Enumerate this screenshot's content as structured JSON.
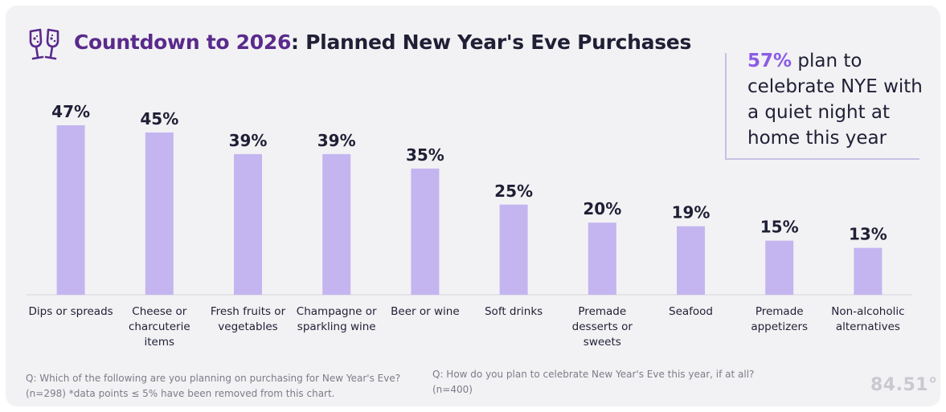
{
  "header": {
    "title_prefix": "Countdown to 2026",
    "title_suffix": ": Planned New Year's Eve Purchases",
    "icon": "champagne-glasses-icon"
  },
  "callout": {
    "percent": "57%",
    "text": "plan to celebrate NYE with a quiet night at home this year"
  },
  "footnotes": {
    "left": "Q: Which of the following are you planning on purchasing for New Year's Eve? (n=298) *data points ≤ 5% have been removed from this chart.",
    "right": "Q: How do you plan to celebrate New Year's Eve this year, if at all? (n=400)"
  },
  "logo": "84.51°",
  "colors": {
    "bar": "#c4b5f0",
    "title_accent": "#5a2a8c",
    "callout_accent": "#8a5ce6",
    "text": "#1f1f36",
    "background": "#f2f2f4"
  },
  "chart_data": {
    "type": "bar",
    "categories": [
      [
        "Dips or spreads"
      ],
      [
        "Cheese or",
        "charcuterie",
        "items"
      ],
      [
        "Fresh fruits or",
        "vegetables"
      ],
      [
        "Champagne or",
        "sparkling wine"
      ],
      [
        "Beer or wine"
      ],
      [
        "Soft drinks"
      ],
      [
        "Premade",
        "desserts or",
        "sweets"
      ],
      [
        "Seafood"
      ],
      [
        "Premade",
        "appetizers"
      ],
      [
        "Non-alcoholic",
        "alternatives"
      ]
    ],
    "values": [
      47,
      45,
      39,
      39,
      35,
      25,
      20,
      19,
      15,
      13
    ],
    "value_labels": [
      "47%",
      "45%",
      "39%",
      "39%",
      "35%",
      "25%",
      "20%",
      "19%",
      "15%",
      "13%"
    ],
    "ylim": [
      0,
      47
    ],
    "grid": false,
    "legend": "none"
  }
}
